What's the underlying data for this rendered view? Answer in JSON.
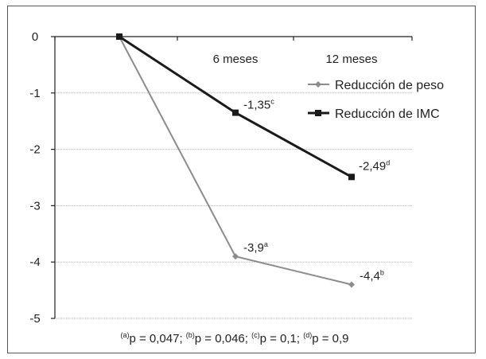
{
  "chart_data": {
    "type": "line",
    "categories": [
      "",
      "6 meses",
      "12 meses"
    ],
    "ylim": [
      -5,
      0
    ],
    "yticks": [
      0,
      -1,
      -2,
      -3,
      -4,
      -5
    ],
    "grid": true,
    "legend_position": "top-right",
    "series": [
      {
        "name": "Reducción de peso",
        "color": "#8c8c8c",
        "marker": "diamond",
        "values": [
          0,
          -3.9,
          -4.4
        ],
        "labels": [
          {
            "text": "",
            "sup": ""
          },
          {
            "text": "-3,9",
            "sup": "a"
          },
          {
            "text": "-4,4",
            "sup": "b"
          }
        ]
      },
      {
        "name": "Reducción de IMC",
        "color": "#1a1a1a",
        "marker": "square",
        "values": [
          0,
          -1.35,
          -2.49
        ],
        "labels": [
          {
            "text": "",
            "sup": ""
          },
          {
            "text": "-1,35",
            "sup": "c"
          },
          {
            "text": "-2,49",
            "sup": "d"
          }
        ]
      }
    ],
    "footnote": [
      {
        "sup": "(a)",
        "text": "p = 0,047; "
      },
      {
        "sup": "(b)",
        "text": "p = 0,046; "
      },
      {
        "sup": "(c)",
        "text": "p = 0,1; "
      },
      {
        "sup": "(d)",
        "text": "p = 0,9"
      }
    ]
  }
}
